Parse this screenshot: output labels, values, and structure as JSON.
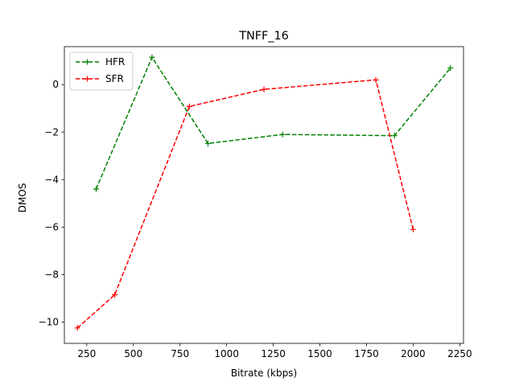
{
  "chart_data": {
    "type": "line",
    "title": "TNFF_16",
    "xlabel": "Bitrate (kbps)",
    "ylabel": "DMOS",
    "xlim": [
      130,
      2270
    ],
    "ylim": [
      -10.9,
      1.6
    ],
    "x_ticks": [
      250,
      500,
      750,
      1000,
      1250,
      1500,
      1750,
      2000,
      2250
    ],
    "y_ticks": [
      0,
      -2,
      -4,
      -6,
      -8,
      -10
    ],
    "grid": false,
    "legend_position": "upper-left",
    "series": [
      {
        "name": "HFR",
        "color": "#008000",
        "line_style": "dashed",
        "marker": "plus",
        "x": [
          300,
          600,
          900,
          1300,
          1900,
          2200
        ],
        "y": [
          -4.4,
          1.15,
          -2.48,
          -2.1,
          -2.15,
          0.7
        ]
      },
      {
        "name": "SFR",
        "color": "#ff0000",
        "line_style": "dashed",
        "marker": "plus",
        "x": [
          200,
          400,
          800,
          1200,
          1800,
          2000
        ],
        "y": [
          -10.25,
          -8.85,
          -0.92,
          -0.2,
          0.2,
          -6.1
        ]
      }
    ]
  }
}
